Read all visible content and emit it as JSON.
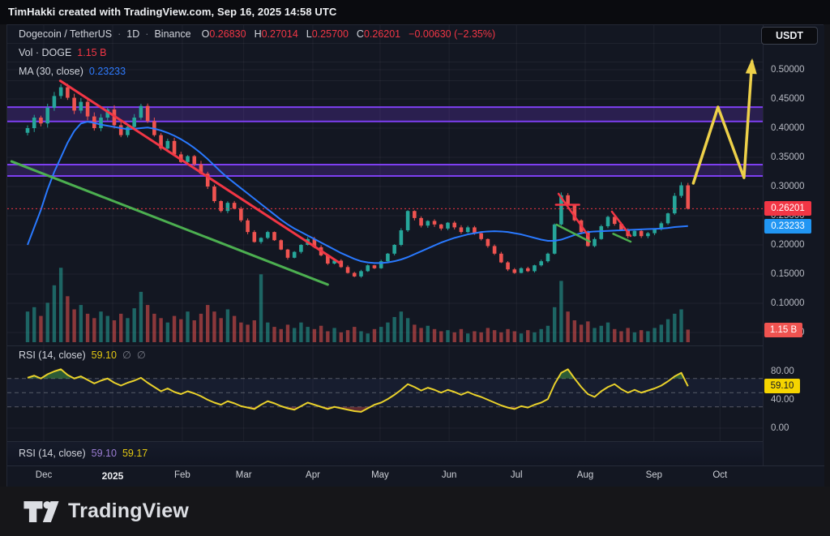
{
  "attribution": "TimHakki created with TradingView.com, Sep 16, 2025 14:58 UTC",
  "currency_button": "USDT",
  "header": {
    "symbol": "Dogecoin / TetherUS",
    "sep": "·",
    "interval": "1D",
    "exchange": "Binance",
    "ohlc": {
      "o_label": "O",
      "o": "0.26830",
      "h_label": "H",
      "h": "0.27014",
      "l_label": "L",
      "l": "0.25700",
      "c_label": "C",
      "c": "0.26201",
      "change": "−0.00630 (−2.35%)"
    },
    "vol": {
      "label": "Vol · DOGE",
      "value": "1.15 B"
    },
    "ma": {
      "label": "MA (30, close)",
      "value": "0.23233"
    }
  },
  "rsi_pane": {
    "label": "RSI (14, close)",
    "value": "59.10",
    "empty1": "∅",
    "empty2": "∅"
  },
  "rsi_pane2": {
    "label": "RSI (14, close)",
    "value1": "59.10",
    "value2": "59.17"
  },
  "axis": {
    "price_ticks": [
      {
        "v": 0.5,
        "t": "0.50000"
      },
      {
        "v": 0.45,
        "t": "0.45000"
      },
      {
        "v": 0.4,
        "t": "0.40000"
      },
      {
        "v": 0.35,
        "t": "0.35000"
      },
      {
        "v": 0.3,
        "t": "0.30000"
      },
      {
        "v": 0.25,
        "t": "0.25000"
      },
      {
        "v": 0.2,
        "t": "0.20000"
      },
      {
        "v": 0.15,
        "t": "0.15000"
      },
      {
        "v": 0.1,
        "t": "0.10000"
      },
      {
        "v": 0.05,
        "t": "0.05000"
      }
    ],
    "price_chip": {
      "v": 0.26201,
      "t": "0.26201"
    },
    "ma_chip": {
      "v": 0.23233,
      "t": "0.23233"
    },
    "vol_chip": {
      "t": "1.15 B"
    },
    "rsi_ticks": [
      {
        "v": 80,
        "t": "80.00"
      },
      {
        "v": 40,
        "t": "40.00"
      },
      {
        "v": 0,
        "t": "0.00"
      }
    ],
    "rsi_chip": {
      "v": 59.1,
      "t": "59.10"
    }
  },
  "time_axis": {
    "months": [
      {
        "label": "Dec",
        "i": 2.43
      },
      {
        "label": "2025",
        "i": 12.76,
        "bold": true
      },
      {
        "label": "Feb",
        "i": 23.2
      },
      {
        "label": "Mar",
        "i": 32.4
      },
      {
        "label": "Apr",
        "i": 42.77
      },
      {
        "label": "May",
        "i": 52.85
      },
      {
        "label": "Jun",
        "i": 63.2
      },
      {
        "label": "Jul",
        "i": 73.3
      },
      {
        "label": "Aug",
        "i": 83.6
      },
      {
        "label": "Sep",
        "i": 93.9
      },
      {
        "label": "Oct",
        "i": 103.8
      }
    ]
  },
  "footer": {
    "brand": "TradingView"
  },
  "colors": {
    "bg": "#131722",
    "up": "#26a69a",
    "down": "#ef5350",
    "ma": "#2979ff",
    "accent_red": "#f23645",
    "accent_blue": "#2196f3",
    "purple": "#7e3ff2",
    "purple_fill": "rgba(126,63,242,0.22)",
    "yellow": "#edd049",
    "rsi_line": "#e9d12b",
    "trend_red": "#f23645",
    "trend_green": "#4caf50",
    "grid": "rgba(255,255,255,0.05)"
  },
  "chart_data": {
    "type": "candlestick",
    "title": "Dogecoin / TetherUS · 1D · Binance",
    "x_unit": "approx 3-day candles, Dec 2024 – mid-Sep 2025",
    "ylabel": "Price (USDT)",
    "price_range": [
      0.05,
      0.52
    ],
    "current_price": 0.26201,
    "last_volume_B": 1.15,
    "rsi_current": 59.1,
    "ma30_current": 0.23233,
    "closes": [
      0.4,
      0.418,
      0.408,
      0.435,
      0.455,
      0.47,
      0.452,
      0.43,
      0.445,
      0.42,
      0.4,
      0.418,
      0.432,
      0.405,
      0.388,
      0.402,
      0.418,
      0.438,
      0.412,
      0.388,
      0.365,
      0.378,
      0.355,
      0.342,
      0.352,
      0.338,
      0.322,
      0.3,
      0.275,
      0.258,
      0.272,
      0.262,
      0.242,
      0.222,
      0.205,
      0.212,
      0.222,
      0.208,
      0.192,
      0.178,
      0.188,
      0.2,
      0.21,
      0.196,
      0.182,
      0.168,
      0.173,
      0.162,
      0.152,
      0.146,
      0.155,
      0.165,
      0.16,
      0.172,
      0.185,
      0.2,
      0.225,
      0.258,
      0.246,
      0.233,
      0.241,
      0.235,
      0.228,
      0.238,
      0.23,
      0.222,
      0.23,
      0.22,
      0.21,
      0.198,
      0.185,
      0.17,
      0.158,
      0.152,
      0.16,
      0.155,
      0.165,
      0.172,
      0.185,
      0.235,
      0.285,
      0.268,
      0.242,
      0.222,
      0.198,
      0.21,
      0.232,
      0.248,
      0.236,
      0.226,
      0.215,
      0.224,
      0.215,
      0.22,
      0.227,
      0.237,
      0.254,
      0.284,
      0.302,
      0.262
    ],
    "volumes_B": [
      2.8,
      3.2,
      2.4,
      3.6,
      5.2,
      6.8,
      4.2,
      3.0,
      3.4,
      2.6,
      2.2,
      2.8,
      2.4,
      2.0,
      2.6,
      2.2,
      3.1,
      4.6,
      3.4,
      2.6,
      2.2,
      1.8,
      2.4,
      2.1,
      2.8,
      2.0,
      2.6,
      3.4,
      2.8,
      2.2,
      3.0,
      2.4,
      1.8,
      1.6,
      2.0,
      6.2,
      1.8,
      1.4,
      1.2,
      1.6,
      1.3,
      1.8,
      1.4,
      1.2,
      1.5,
      1.0,
      1.3,
      0.9,
      1.1,
      1.4,
      1.0,
      0.8,
      1.2,
      1.4,
      1.8,
      2.3,
      2.8,
      2.2,
      1.6,
      1.3,
      1.5,
      1.2,
      1.0,
      1.1,
      0.9,
      1.2,
      0.8,
      1.0,
      0.9,
      1.3,
      1.1,
      0.9,
      1.2,
      1.0,
      0.8,
      1.1,
      0.9,
      1.2,
      1.5,
      3.2,
      5.6,
      2.8,
      2.0,
      1.6,
      1.9,
      1.3,
      1.5,
      1.8,
      1.2,
      1.0,
      1.3,
      0.9,
      1.1,
      1.0,
      1.3,
      1.6,
      2.1,
      2.6,
      3.0,
      1.15
    ],
    "ma30": [
      0.2,
      0.23,
      0.26,
      0.295,
      0.325,
      0.35,
      0.375,
      0.395,
      0.408,
      0.411,
      0.409,
      0.406,
      0.404,
      0.402,
      0.4,
      0.398,
      0.399,
      0.4,
      0.401,
      0.399,
      0.396,
      0.392,
      0.387,
      0.381,
      0.374,
      0.366,
      0.357,
      0.347,
      0.336,
      0.325,
      0.315,
      0.306,
      0.297,
      0.288,
      0.279,
      0.27,
      0.261,
      0.252,
      0.243,
      0.235,
      0.228,
      0.222,
      0.216,
      0.21,
      0.204,
      0.198,
      0.192,
      0.186,
      0.181,
      0.176,
      0.172,
      0.17,
      0.169,
      0.169,
      0.17,
      0.172,
      0.175,
      0.179,
      0.184,
      0.189,
      0.194,
      0.199,
      0.204,
      0.208,
      0.212,
      0.215,
      0.218,
      0.22,
      0.222,
      0.223,
      0.2235,
      0.223,
      0.222,
      0.22,
      0.218,
      0.215,
      0.212,
      0.209,
      0.207,
      0.207,
      0.209,
      0.213,
      0.217,
      0.22,
      0.222,
      0.223,
      0.2235,
      0.224,
      0.2245,
      0.225,
      0.2255,
      0.226,
      0.2265,
      0.227,
      0.2275,
      0.228,
      0.229,
      0.2305,
      0.2315,
      0.2323
    ],
    "rsi14": [
      71,
      74,
      70,
      76,
      80,
      83,
      75,
      70,
      73,
      68,
      63,
      67,
      70,
      64,
      60,
      64,
      67,
      71,
      64,
      58,
      52,
      56,
      51,
      48,
      52,
      49,
      45,
      40,
      36,
      33,
      38,
      35,
      31,
      29,
      27,
      33,
      38,
      35,
      31,
      28,
      26,
      31,
      36,
      33,
      30,
      27,
      30,
      28,
      26,
      24,
      23,
      28,
      33,
      36,
      41,
      47,
      54,
      62,
      58,
      53,
      57,
      54,
      50,
      54,
      51,
      47,
      51,
      47,
      44,
      40,
      36,
      32,
      29,
      27,
      31,
      29,
      33,
      36,
      41,
      62,
      78,
      83,
      70,
      58,
      48,
      44,
      52,
      58,
      62,
      55,
      50,
      54,
      50,
      53,
      56,
      60,
      66,
      73,
      78,
      59.1
    ],
    "resistance_bands": [
      {
        "top": 0.436,
        "bottom": 0.4115
      },
      {
        "top": 0.3375,
        "bottom": 0.318
      }
    ],
    "trendlines": [
      {
        "name": "major-downtrend-red",
        "color": "red",
        "width": 3,
        "pts": [
          [
            4.9,
            0.481
          ],
          [
            46.8,
            0.169
          ]
        ]
      },
      {
        "name": "major-support-green",
        "color": "green",
        "width": 3,
        "pts": [
          [
            -2.4,
            0.343
          ],
          [
            45.0,
            0.132
          ]
        ]
      },
      {
        "name": "flag-red-1",
        "color": "red",
        "width": 2.5,
        "pts": [
          [
            79.6,
            0.2875
          ],
          [
            84.1,
            0.2153
          ]
        ]
      },
      {
        "name": "flag-red-1-top",
        "color": "red",
        "width": 2.5,
        "pts": [
          [
            79.2,
            0.2687
          ],
          [
            82.7,
            0.2687
          ]
        ]
      },
      {
        "name": "flag-green-1",
        "color": "green",
        "width": 2.5,
        "pts": [
          [
            79.3,
            0.2347
          ],
          [
            84.3,
            0.2056
          ]
        ]
      },
      {
        "name": "flag-red-2",
        "color": "red",
        "width": 2.5,
        "pts": [
          [
            87.6,
            0.257
          ],
          [
            90.4,
            0.2153
          ]
        ]
      },
      {
        "name": "flag-green-2",
        "color": "green",
        "width": 2.5,
        "pts": [
          [
            87.8,
            0.219
          ],
          [
            90.4,
            0.2056
          ]
        ]
      }
    ],
    "projection_arrow": [
      [
        99.8,
        0.3056
      ],
      [
        103.5,
        0.436
      ],
      [
        107.4,
        0.315
      ],
      [
        108.6,
        0.514
      ]
    ],
    "rsi_levels": [
      70,
      50,
      30
    ],
    "legend_position": "top-left",
    "grid": true
  }
}
